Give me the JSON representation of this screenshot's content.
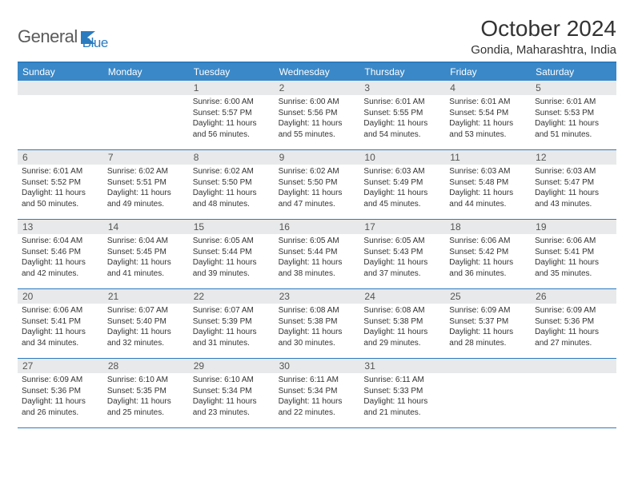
{
  "logo": {
    "text1": "General",
    "text2": "Blue"
  },
  "title": "October 2024",
  "location": "Gondia, Maharashtra, India",
  "colors": {
    "header_bg": "#3a88c8",
    "border": "#2b7bbf",
    "daynum_bg": "#e8e9ea",
    "text": "#333333",
    "logo_gray": "#5a5a5a",
    "logo_blue": "#2b7bbf"
  },
  "day_names": [
    "Sunday",
    "Monday",
    "Tuesday",
    "Wednesday",
    "Thursday",
    "Friday",
    "Saturday"
  ],
  "weeks": [
    [
      null,
      null,
      {
        "n": "1",
        "sr": "Sunrise: 6:00 AM",
        "ss": "Sunset: 5:57 PM",
        "dl1": "Daylight: 11 hours",
        "dl2": "and 56 minutes."
      },
      {
        "n": "2",
        "sr": "Sunrise: 6:00 AM",
        "ss": "Sunset: 5:56 PM",
        "dl1": "Daylight: 11 hours",
        "dl2": "and 55 minutes."
      },
      {
        "n": "3",
        "sr": "Sunrise: 6:01 AM",
        "ss": "Sunset: 5:55 PM",
        "dl1": "Daylight: 11 hours",
        "dl2": "and 54 minutes."
      },
      {
        "n": "4",
        "sr": "Sunrise: 6:01 AM",
        "ss": "Sunset: 5:54 PM",
        "dl1": "Daylight: 11 hours",
        "dl2": "and 53 minutes."
      },
      {
        "n": "5",
        "sr": "Sunrise: 6:01 AM",
        "ss": "Sunset: 5:53 PM",
        "dl1": "Daylight: 11 hours",
        "dl2": "and 51 minutes."
      }
    ],
    [
      {
        "n": "6",
        "sr": "Sunrise: 6:01 AM",
        "ss": "Sunset: 5:52 PM",
        "dl1": "Daylight: 11 hours",
        "dl2": "and 50 minutes."
      },
      {
        "n": "7",
        "sr": "Sunrise: 6:02 AM",
        "ss": "Sunset: 5:51 PM",
        "dl1": "Daylight: 11 hours",
        "dl2": "and 49 minutes."
      },
      {
        "n": "8",
        "sr": "Sunrise: 6:02 AM",
        "ss": "Sunset: 5:50 PM",
        "dl1": "Daylight: 11 hours",
        "dl2": "and 48 minutes."
      },
      {
        "n": "9",
        "sr": "Sunrise: 6:02 AM",
        "ss": "Sunset: 5:50 PM",
        "dl1": "Daylight: 11 hours",
        "dl2": "and 47 minutes."
      },
      {
        "n": "10",
        "sr": "Sunrise: 6:03 AM",
        "ss": "Sunset: 5:49 PM",
        "dl1": "Daylight: 11 hours",
        "dl2": "and 45 minutes."
      },
      {
        "n": "11",
        "sr": "Sunrise: 6:03 AM",
        "ss": "Sunset: 5:48 PM",
        "dl1": "Daylight: 11 hours",
        "dl2": "and 44 minutes."
      },
      {
        "n": "12",
        "sr": "Sunrise: 6:03 AM",
        "ss": "Sunset: 5:47 PM",
        "dl1": "Daylight: 11 hours",
        "dl2": "and 43 minutes."
      }
    ],
    [
      {
        "n": "13",
        "sr": "Sunrise: 6:04 AM",
        "ss": "Sunset: 5:46 PM",
        "dl1": "Daylight: 11 hours",
        "dl2": "and 42 minutes."
      },
      {
        "n": "14",
        "sr": "Sunrise: 6:04 AM",
        "ss": "Sunset: 5:45 PM",
        "dl1": "Daylight: 11 hours",
        "dl2": "and 41 minutes."
      },
      {
        "n": "15",
        "sr": "Sunrise: 6:05 AM",
        "ss": "Sunset: 5:44 PM",
        "dl1": "Daylight: 11 hours",
        "dl2": "and 39 minutes."
      },
      {
        "n": "16",
        "sr": "Sunrise: 6:05 AM",
        "ss": "Sunset: 5:44 PM",
        "dl1": "Daylight: 11 hours",
        "dl2": "and 38 minutes."
      },
      {
        "n": "17",
        "sr": "Sunrise: 6:05 AM",
        "ss": "Sunset: 5:43 PM",
        "dl1": "Daylight: 11 hours",
        "dl2": "and 37 minutes."
      },
      {
        "n": "18",
        "sr": "Sunrise: 6:06 AM",
        "ss": "Sunset: 5:42 PM",
        "dl1": "Daylight: 11 hours",
        "dl2": "and 36 minutes."
      },
      {
        "n": "19",
        "sr": "Sunrise: 6:06 AM",
        "ss": "Sunset: 5:41 PM",
        "dl1": "Daylight: 11 hours",
        "dl2": "and 35 minutes."
      }
    ],
    [
      {
        "n": "20",
        "sr": "Sunrise: 6:06 AM",
        "ss": "Sunset: 5:41 PM",
        "dl1": "Daylight: 11 hours",
        "dl2": "and 34 minutes."
      },
      {
        "n": "21",
        "sr": "Sunrise: 6:07 AM",
        "ss": "Sunset: 5:40 PM",
        "dl1": "Daylight: 11 hours",
        "dl2": "and 32 minutes."
      },
      {
        "n": "22",
        "sr": "Sunrise: 6:07 AM",
        "ss": "Sunset: 5:39 PM",
        "dl1": "Daylight: 11 hours",
        "dl2": "and 31 minutes."
      },
      {
        "n": "23",
        "sr": "Sunrise: 6:08 AM",
        "ss": "Sunset: 5:38 PM",
        "dl1": "Daylight: 11 hours",
        "dl2": "and 30 minutes."
      },
      {
        "n": "24",
        "sr": "Sunrise: 6:08 AM",
        "ss": "Sunset: 5:38 PM",
        "dl1": "Daylight: 11 hours",
        "dl2": "and 29 minutes."
      },
      {
        "n": "25",
        "sr": "Sunrise: 6:09 AM",
        "ss": "Sunset: 5:37 PM",
        "dl1": "Daylight: 11 hours",
        "dl2": "and 28 minutes."
      },
      {
        "n": "26",
        "sr": "Sunrise: 6:09 AM",
        "ss": "Sunset: 5:36 PM",
        "dl1": "Daylight: 11 hours",
        "dl2": "and 27 minutes."
      }
    ],
    [
      {
        "n": "27",
        "sr": "Sunrise: 6:09 AM",
        "ss": "Sunset: 5:36 PM",
        "dl1": "Daylight: 11 hours",
        "dl2": "and 26 minutes."
      },
      {
        "n": "28",
        "sr": "Sunrise: 6:10 AM",
        "ss": "Sunset: 5:35 PM",
        "dl1": "Daylight: 11 hours",
        "dl2": "and 25 minutes."
      },
      {
        "n": "29",
        "sr": "Sunrise: 6:10 AM",
        "ss": "Sunset: 5:34 PM",
        "dl1": "Daylight: 11 hours",
        "dl2": "and 23 minutes."
      },
      {
        "n": "30",
        "sr": "Sunrise: 6:11 AM",
        "ss": "Sunset: 5:34 PM",
        "dl1": "Daylight: 11 hours",
        "dl2": "and 22 minutes."
      },
      {
        "n": "31",
        "sr": "Sunrise: 6:11 AM",
        "ss": "Sunset: 5:33 PM",
        "dl1": "Daylight: 11 hours",
        "dl2": "and 21 minutes."
      },
      null,
      null
    ]
  ]
}
